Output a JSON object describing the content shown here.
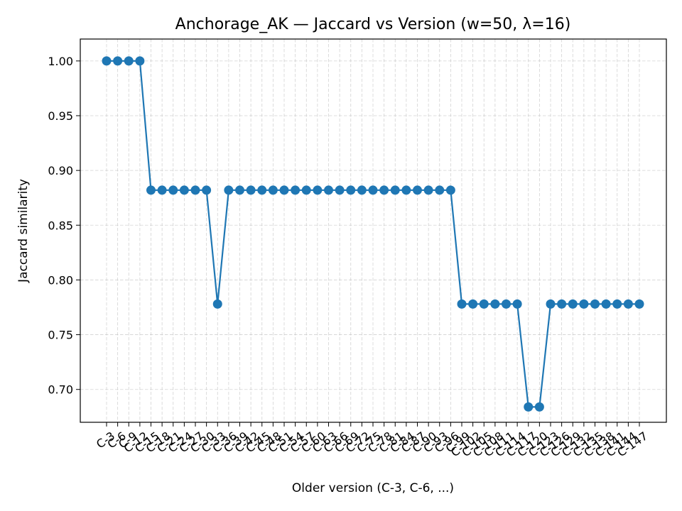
{
  "chart_data": {
    "type": "line",
    "title": "Anchorage_AK — Jaccard vs Version (w=50, λ=16)",
    "xlabel": "Older version (C-3, C-6, ...)",
    "ylabel": "Jaccard similarity",
    "ylim": [
      0.67,
      1.02
    ],
    "yticks": [
      "0.70",
      "0.75",
      "0.80",
      "0.85",
      "0.90",
      "0.95",
      "1.00"
    ],
    "grid": true,
    "categories": [
      "C-3",
      "C-6",
      "C-9",
      "C-12",
      "C-15",
      "C-18",
      "C-21",
      "C-24",
      "C-27",
      "C-30",
      "C-33",
      "C-36",
      "C-39",
      "C-42",
      "C-45",
      "C-48",
      "C-51",
      "C-54",
      "C-57",
      "C-60",
      "C-63",
      "C-66",
      "C-69",
      "C-72",
      "C-75",
      "C-78",
      "C-81",
      "C-84",
      "C-87",
      "C-90",
      "C-93",
      "C-96",
      "C-99",
      "C-102",
      "C-105",
      "C-108",
      "C-111",
      "C-114",
      "C-117",
      "C-120",
      "C-123",
      "C-126",
      "C-129",
      "C-132",
      "C-135",
      "C-138",
      "C-141",
      "C-144",
      "C-147"
    ],
    "series": [
      {
        "color": "#1f77b4",
        "values": [
          1.0,
          1.0,
          1.0,
          1.0,
          0.882,
          0.882,
          0.882,
          0.882,
          0.882,
          0.882,
          0.778,
          0.882,
          0.882,
          0.882,
          0.882,
          0.882,
          0.882,
          0.882,
          0.882,
          0.882,
          0.882,
          0.882,
          0.882,
          0.882,
          0.882,
          0.882,
          0.882,
          0.882,
          0.882,
          0.882,
          0.882,
          0.882,
          0.778,
          0.778,
          0.778,
          0.778,
          0.778,
          0.778,
          0.684,
          0.684,
          0.778,
          0.778,
          0.778,
          0.778,
          0.778,
          0.778,
          0.778,
          0.778,
          0.778
        ]
      }
    ]
  }
}
